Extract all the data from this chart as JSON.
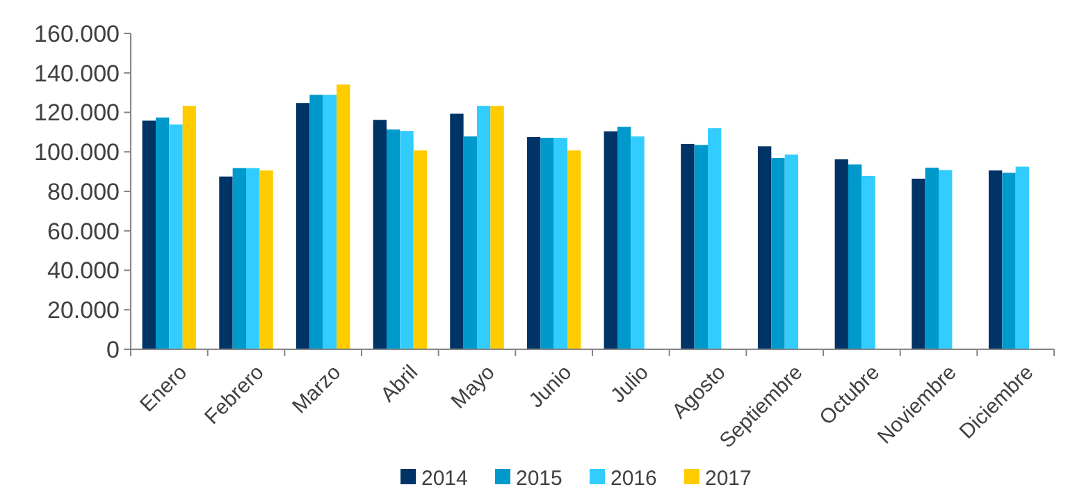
{
  "chart_data": {
    "type": "bar",
    "categories": [
      "Enero",
      "Febrero",
      "Marzo",
      "Abril",
      "Mayo",
      "Junio",
      "Julio",
      "Agosto",
      "Septiembre",
      "Octubre",
      "Noviembre",
      "Diciembre"
    ],
    "series": [
      {
        "name": "2014",
        "color": "#003366",
        "values": [
          115800,
          87500,
          124700,
          116200,
          119300,
          107500,
          110400,
          104000,
          102800,
          96200,
          86400,
          90600
        ]
      },
      {
        "name": "2015",
        "color": "#0099cc",
        "values": [
          117400,
          91800,
          128900,
          111300,
          107800,
          107100,
          112700,
          103500,
          96900,
          93600,
          92000,
          89400
        ]
      },
      {
        "name": "2016",
        "color": "#33ccff",
        "values": [
          113900,
          91800,
          128900,
          110600,
          123300,
          107100,
          107800,
          112000,
          98600,
          87800,
          90800,
          92500
        ]
      },
      {
        "name": "2017",
        "color": "#ffcc00",
        "values": [
          123300,
          90600,
          134100,
          100700,
          123300,
          100700,
          null,
          null,
          null,
          null,
          null,
          null
        ]
      }
    ],
    "ylim": [
      0,
      160000
    ],
    "yticks": [
      0,
      {
        "value": 20000,
        "label": "20.000"
      },
      {
        "value": 40000,
        "label": "40.000"
      },
      {
        "value": 60000,
        "label": "60.000"
      },
      {
        "value": 80000,
        "label": "80.000"
      },
      {
        "value": 100000,
        "label": "100.000"
      },
      {
        "value": 120000,
        "label": "120.000"
      },
      {
        "value": 140000,
        "label": "140.000"
      },
      {
        "value": 160000,
        "label": "160.000"
      }
    ],
    "legend": "bottom",
    "grid": false
  }
}
